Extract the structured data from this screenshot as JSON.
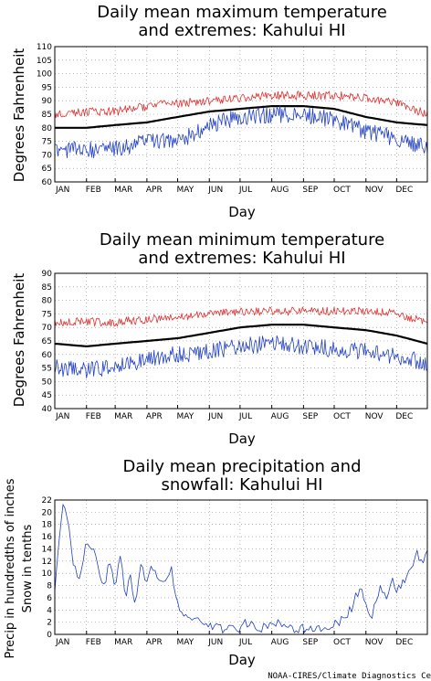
{
  "months": [
    "JAN",
    "FEB",
    "MAR",
    "APR",
    "MAY",
    "JUN",
    "JUL",
    "AUG",
    "SEP",
    "OCT",
    "NOV",
    "DEC"
  ],
  "credit": "NOAA-CIRES/Climate Diagnostics Ce",
  "colors": {
    "max": "#e03030",
    "mean": "#000000",
    "min": "#2040c8",
    "precip": "#2040c8",
    "snow": "#e03030",
    "grid": "#888888"
  },
  "chart_data": [
    {
      "type": "line",
      "title_line1": "Daily mean maximum temperature",
      "title_line2": "and extremes: Kahului HI",
      "xlabel": "Day",
      "ylabel": "Degrees Fahrenheit",
      "ylim": [
        60,
        110
      ],
      "yticks": [
        60,
        65,
        70,
        75,
        80,
        85,
        90,
        95,
        100,
        105,
        110
      ],
      "grid": true,
      "series": [
        {
          "role": "extreme_max",
          "color": "#e03030",
          "x": [
            1,
            32,
            60,
            91,
            121,
            152,
            182,
            213,
            244,
            274,
            305,
            335,
            365
          ],
          "values": [
            85,
            86,
            86,
            88,
            89,
            90,
            91,
            92,
            92,
            92,
            91,
            89,
            85
          ]
        },
        {
          "role": "mean",
          "color": "#000000",
          "x": [
            1,
            32,
            60,
            91,
            121,
            152,
            182,
            213,
            244,
            274,
            305,
            335,
            365
          ],
          "values": [
            80,
            80,
            81,
            82,
            84,
            86,
            87,
            88,
            88,
            87,
            84,
            82,
            81
          ]
        },
        {
          "role": "extreme_min",
          "color": "#2040c8",
          "x": [
            1,
            32,
            60,
            91,
            121,
            152,
            182,
            213,
            244,
            274,
            305,
            335,
            365
          ],
          "values": [
            72,
            72,
            72,
            75,
            75,
            81,
            84,
            85,
            85,
            83,
            79,
            76,
            73
          ]
        }
      ]
    },
    {
      "type": "line",
      "title_line1": "Daily mean minimum temperature",
      "title_line2": "and extremes: Kahului HI",
      "xlabel": "Day",
      "ylabel": "Degrees Fahrenheit",
      "ylim": [
        40,
        90
      ],
      "yticks": [
        40,
        45,
        50,
        55,
        60,
        65,
        70,
        75,
        80,
        85,
        90
      ],
      "grid": true,
      "series": [
        {
          "role": "extreme_max",
          "color": "#e03030",
          "x": [
            1,
            32,
            60,
            91,
            121,
            152,
            182,
            213,
            244,
            274,
            305,
            335,
            365
          ],
          "values": [
            72,
            72,
            72,
            73,
            74,
            75,
            76,
            76,
            76,
            76,
            76,
            75,
            72
          ]
        },
        {
          "role": "mean",
          "color": "#000000",
          "x": [
            1,
            32,
            60,
            91,
            121,
            152,
            182,
            213,
            244,
            274,
            305,
            335,
            365
          ],
          "values": [
            64,
            63,
            64,
            65,
            66,
            68,
            70,
            71,
            71,
            70,
            69,
            67,
            64
          ]
        },
        {
          "role": "extreme_min",
          "color": "#2040c8",
          "x": [
            1,
            32,
            60,
            91,
            121,
            152,
            182,
            213,
            244,
            274,
            305,
            335,
            365
          ],
          "values": [
            55,
            54,
            56,
            58,
            60,
            61,
            63,
            64,
            63,
            62,
            61,
            59,
            57
          ]
        }
      ]
    },
    {
      "type": "line",
      "title_line1": "Daily mean precipitation and",
      "title_line2": "snowfall: Kahului HI",
      "xlabel": "Day",
      "ylabel_line1": "Precip in hundredths of inches",
      "ylabel_line2": "Snow in tenths",
      "ylim": [
        0,
        22
      ],
      "yticks": [
        0,
        2,
        4,
        6,
        8,
        10,
        12,
        14,
        16,
        18,
        20,
        22
      ],
      "grid": true,
      "series": [
        {
          "role": "precip",
          "color": "#2040c8",
          "x": [
            1,
            5,
            9,
            13,
            18,
            24,
            30,
            36,
            42,
            48,
            55,
            60,
            65,
            70,
            75,
            80,
            85,
            90,
            95,
            100,
            105,
            110,
            115,
            120,
            125,
            130,
            140,
            150,
            160,
            170,
            180,
            190,
            200,
            210,
            220,
            230,
            240,
            250,
            260,
            270,
            275,
            280,
            285,
            290,
            295,
            300,
            305,
            310,
            315,
            320,
            325,
            330,
            335,
            340,
            345,
            350,
            355,
            360,
            365
          ],
          "values": [
            7,
            15,
            22,
            19,
            13,
            8,
            14,
            15,
            12,
            7,
            12,
            8,
            13,
            6,
            10,
            4,
            12,
            9,
            11,
            10,
            9,
            8,
            11,
            5,
            3,
            3,
            2,
            2,
            1,
            1,
            1,
            2,
            1,
            1,
            2,
            1,
            1,
            1,
            1,
            1,
            2,
            2,
            3,
            4,
            6,
            8,
            5,
            3,
            5,
            8,
            6,
            9,
            7,
            8,
            10,
            11,
            13,
            12,
            13
          ]
        },
        {
          "role": "snow",
          "color": "#e03030",
          "x": [
            1,
            365
          ],
          "values": [
            0,
            0
          ]
        }
      ]
    }
  ]
}
